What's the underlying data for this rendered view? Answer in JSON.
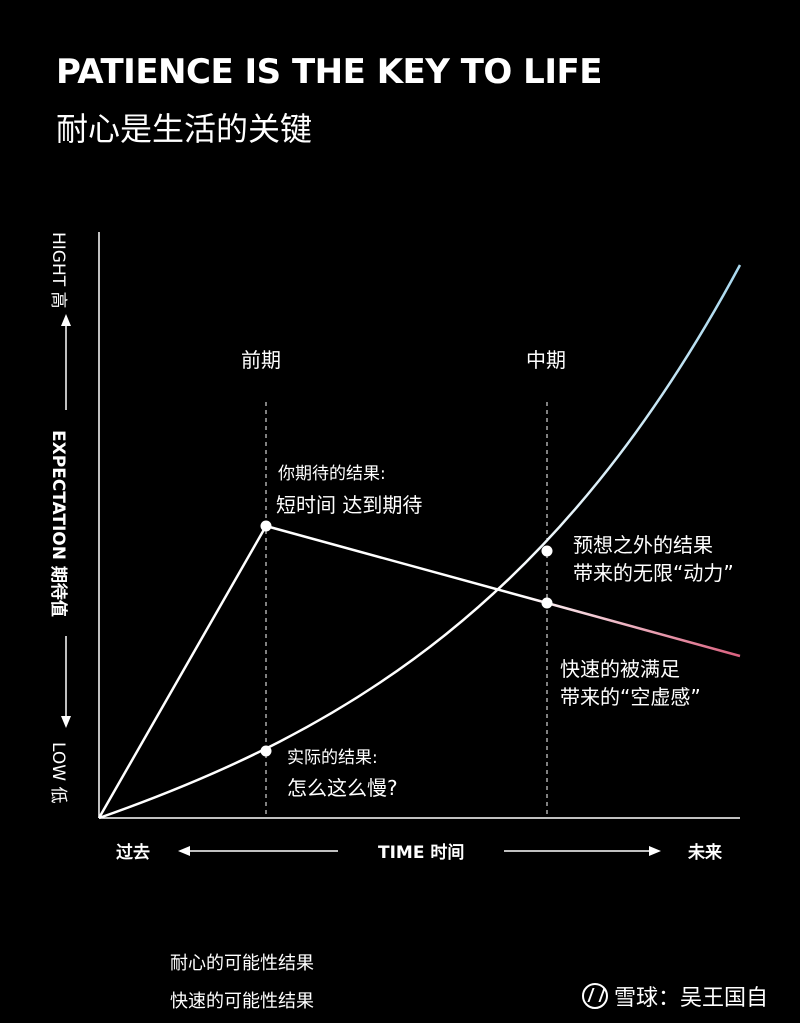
{
  "title": "PATIENCE IS THE KEY TO LIFE",
  "subtitle": "耐心是生活的关键",
  "y_axis": {
    "high": "HIGHT 高",
    "middle": "EXPECTATION 期待值",
    "low": "LOW 低"
  },
  "x_axis": {
    "past": "过去",
    "middle": "TIME 时间",
    "future": "未来"
  },
  "phases": {
    "early": "前期",
    "mid": "中期"
  },
  "annotations": {
    "expected_line1": "你期待的结果:",
    "expected_line2": "短时间 达到期待",
    "actual_line1": "实际的结果:",
    "actual_line2": "怎么这么慢?",
    "unexpected_line1": "预想之外的结果",
    "unexpected_line2": "带来的无限“动力”",
    "quick_line1": "快速的被满足",
    "quick_line2": "带来的“空虚感”"
  },
  "legend": {
    "patience": "耐心的可能性结果",
    "quick": "快速的可能性结果"
  },
  "colors": {
    "background": "#000000",
    "line": "#ffffff",
    "patience_accent": "#a9d8ee",
    "quick_accent": "#d9607e"
  },
  "watermark": "雪球：吴王国自"
}
